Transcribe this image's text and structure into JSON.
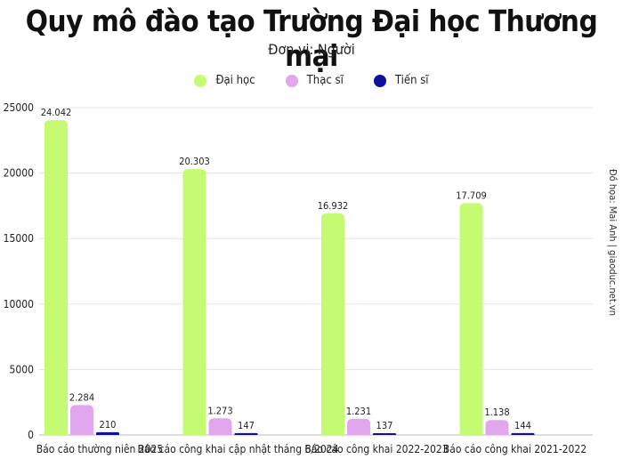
{
  "chart_data": {
    "type": "bar",
    "title": "Quy mô đào tạo Trường Đại học Thương mại",
    "subtitle": "Đơn vị: Người",
    "categories": [
      "Báo cáo thường niên 2025",
      "Báo cáo công khai cập nhật tháng 6/2024",
      "Báo cáo công khai 2022-2023",
      "Báo cáo công khai 2021-2022"
    ],
    "series": [
      {
        "name": "Đại học",
        "color": "#c5fb72",
        "values": [
          24042,
          20303,
          16932,
          17709
        ],
        "labels": [
          "24.042",
          "20.303",
          "16.932",
          "17.709"
        ]
      },
      {
        "name": "Thạc sĩ",
        "color": "#e1a6ed",
        "values": [
          2284,
          1273,
          1231,
          1138
        ],
        "labels": [
          "2.284",
          "1.273",
          "1.231",
          "1.138"
        ]
      },
      {
        "name": "Tiến sĩ",
        "color": "#1010a0",
        "values": [
          210,
          147,
          137,
          144
        ],
        "labels": [
          "210",
          "147",
          "137",
          "144"
        ]
      }
    ],
    "yticks": [
      0,
      5000,
      10000,
      15000,
      20000,
      25000
    ],
    "ylim": [
      0,
      25000
    ],
    "grid": true,
    "legend_position": "top-center",
    "credit": "Đồ họa: Mai Anh | giaoduc.net.vn"
  }
}
